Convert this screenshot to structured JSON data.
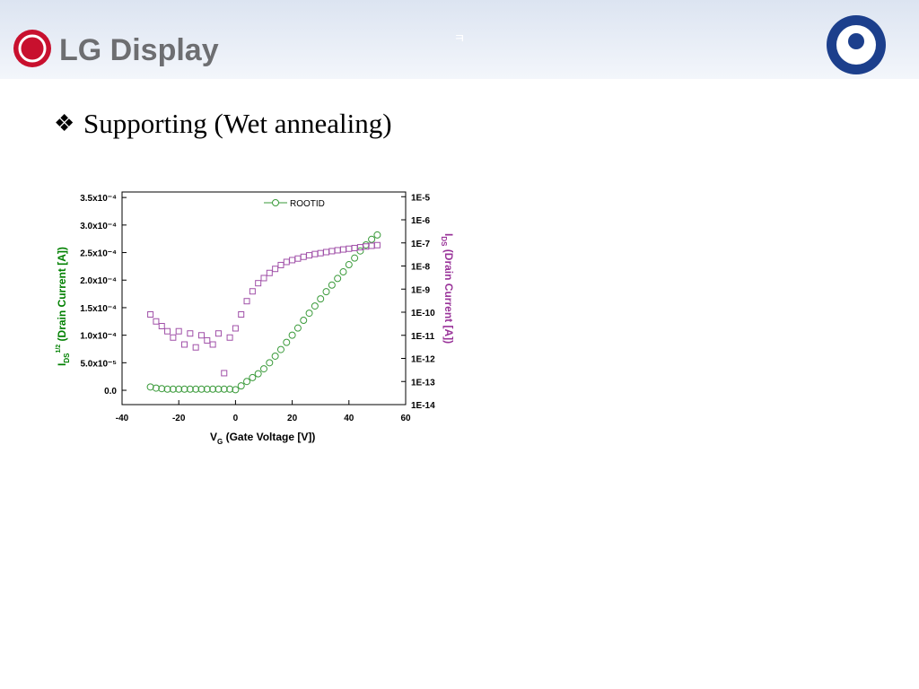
{
  "header": {
    "logo": "LG Display",
    "mark": "ㅋ"
  },
  "title": {
    "bullet": "❖",
    "text": "Supporting (Wet annealing)"
  },
  "chart_data": {
    "type": "scatter",
    "x_label": {
      "main": "V",
      "sub": "G",
      "rest": " (Gate Voltage [V])"
    },
    "y_label": {
      "main": "I",
      "sub": "DS",
      "sup": "1/2",
      "rest": " (Drain Current [A])"
    },
    "y2_label": {
      "main": "I",
      "sub": "DS",
      "rest": " (Drain Current [A])"
    },
    "xlim": [
      -40,
      60
    ],
    "xticks": [
      -40,
      -20,
      0,
      20,
      40,
      60
    ],
    "ylim": [
      -2.6e-05,
      0.00036
    ],
    "yticks": [
      {
        "value": 0,
        "label": "0.0"
      },
      {
        "value": 5e-05,
        "label": "5.0x10⁻⁵"
      },
      {
        "value": 0.0001,
        "label": "1.0x10⁻⁴"
      },
      {
        "value": 0.00015,
        "label": "1.5x10⁻⁴"
      },
      {
        "value": 0.0002,
        "label": "2.0x10⁻⁴"
      },
      {
        "value": 0.00025,
        "label": "2.5x10⁻⁴"
      },
      {
        "value": 0.0003,
        "label": "3.0x10⁻⁴"
      },
      {
        "value": 0.00035,
        "label": "3.5x10⁻⁴"
      }
    ],
    "y2lim": [
      1e-14,
      1.6e-05
    ],
    "y2_log": true,
    "y2ticks": [
      {
        "value": 1e-14,
        "label": "1E-14"
      },
      {
        "value": 1e-13,
        "label": "1E-13"
      },
      {
        "value": 1e-12,
        "label": "1E-12"
      },
      {
        "value": 1e-11,
        "label": "1E-11"
      },
      {
        "value": 1e-10,
        "label": "1E-10"
      },
      {
        "value": 1e-09,
        "label": "1E-9"
      },
      {
        "value": 1e-08,
        "label": "1E-8"
      },
      {
        "value": 1e-07,
        "label": "1E-7"
      },
      {
        "value": 1e-06,
        "label": "1E-6"
      },
      {
        "value": 1e-05,
        "label": "1E-5"
      }
    ],
    "x": [
      -30,
      -28,
      -26,
      -24,
      -22,
      -20,
      -18,
      -16,
      -14,
      -12,
      -10,
      -8,
      -6,
      -4,
      -2,
      0,
      2,
      4,
      6,
      8,
      10,
      12,
      14,
      16,
      18,
      20,
      22,
      24,
      26,
      28,
      30,
      32,
      34,
      36,
      38,
      40,
      42,
      44,
      46,
      48,
      50
    ],
    "series": [
      {
        "name": "ROOTID",
        "color": "#3a9a3a",
        "marker": "circle",
        "values": [
          6e-06,
          4e-06,
          3e-06,
          2e-06,
          2e-06,
          2e-06,
          2e-06,
          2e-06,
          2e-06,
          2e-06,
          2e-06,
          2e-06,
          2e-06,
          2e-06,
          2e-06,
          1e-06,
          8e-06,
          1.6e-05,
          2.3e-05,
          3e-05,
          3.9e-05,
          5e-05,
          6.2e-05,
          7.4e-05,
          8.7e-05,
          0.0001,
          0.000113,
          0.000127,
          0.00014,
          0.000153,
          0.000166,
          0.000179,
          0.000191,
          0.000203,
          0.000215,
          0.000228,
          0.00024,
          0.000253,
          0.000264,
          0.000274,
          0.000282
        ]
      },
      {
        "color": "#a050a8",
        "marker": "square",
        "axis": "y2",
        "values": [
          8e-11,
          4e-11,
          2.5e-11,
          1.5e-11,
          8e-12,
          1.5e-11,
          4e-12,
          1.2e-11,
          3e-12,
          1e-11,
          6e-12,
          4e-12,
          1.2e-11,
          2.3e-13,
          8e-12,
          2e-11,
          8e-11,
          3e-10,
          8e-10,
          1.8e-09,
          3e-09,
          5e-09,
          7.5e-09,
          1.1e-08,
          1.5e-08,
          1.8e-08,
          2.1e-08,
          2.5e-08,
          2.9e-08,
          3.3e-08,
          3.6e-08,
          4e-08,
          4.4e-08,
          4.8e-08,
          5.2e-08,
          5.6e-08,
          6e-08,
          6.5e-08,
          7e-08,
          7.5e-08,
          8e-08
        ]
      }
    ],
    "legend": "top"
  }
}
